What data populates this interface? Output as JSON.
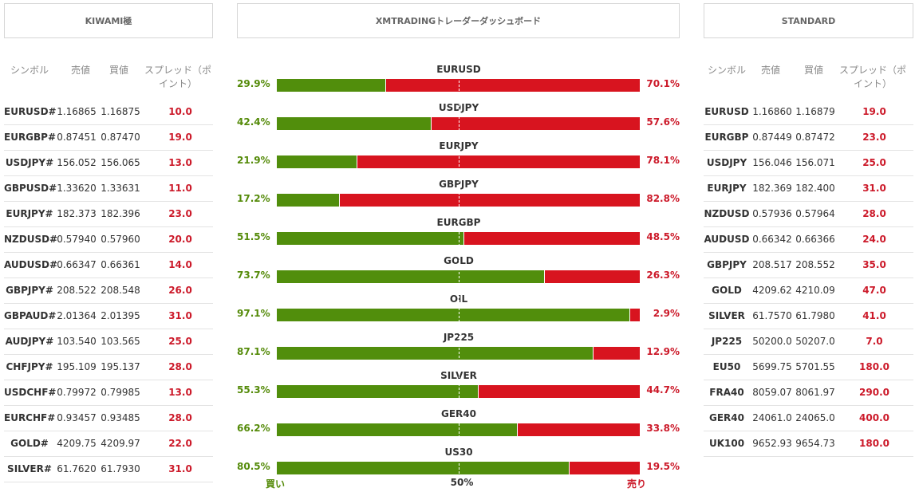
{
  "left_panel": {
    "title": "KIWAMI極",
    "columns": [
      "シンボル",
      "売値",
      "買値",
      "スプレッド（ポイント）"
    ],
    "columns_lines": {
      "spread_line1": "スプレッド（ポ",
      "spread_line2": "イント）"
    },
    "rows": [
      {
        "symbol": "EURUSD#",
        "bid": "1.16865",
        "ask": "1.16875",
        "spread": "10.0"
      },
      {
        "symbol": "EURGBP#",
        "bid": "0.87451",
        "ask": "0.87470",
        "spread": "19.0"
      },
      {
        "symbol": "USDJPY#",
        "bid": "156.052",
        "ask": "156.065",
        "spread": "13.0"
      },
      {
        "symbol": "GBPUSD#",
        "bid": "1.33620",
        "ask": "1.33631",
        "spread": "11.0"
      },
      {
        "symbol": "EURJPY#",
        "bid": "182.373",
        "ask": "182.396",
        "spread": "23.0"
      },
      {
        "symbol": "NZDUSD#",
        "bid": "0.57940",
        "ask": "0.57960",
        "spread": "20.0"
      },
      {
        "symbol": "AUDUSD#",
        "bid": "0.66347",
        "ask": "0.66361",
        "spread": "14.0"
      },
      {
        "symbol": "GBPJPY#",
        "bid": "208.522",
        "ask": "208.548",
        "spread": "26.0"
      },
      {
        "symbol": "GBPAUD#",
        "bid": "2.01364",
        "ask": "2.01395",
        "spread": "31.0"
      },
      {
        "symbol": "AUDJPY#",
        "bid": "103.540",
        "ask": "103.565",
        "spread": "25.0"
      },
      {
        "symbol": "CHFJPY#",
        "bid": "195.109",
        "ask": "195.137",
        "spread": "28.0"
      },
      {
        "symbol": "USDCHF#",
        "bid": "0.79972",
        "ask": "0.79985",
        "spread": "13.0"
      },
      {
        "symbol": "EURCHF#",
        "bid": "0.93457",
        "ask": "0.93485",
        "spread": "28.0"
      },
      {
        "symbol": "GOLD#",
        "bid": "4209.75",
        "ask": "4209.97",
        "spread": "22.0"
      },
      {
        "symbol": "SILVER#",
        "bid": "61.7620",
        "ask": "61.7930",
        "spread": "31.0"
      }
    ]
  },
  "center_panel": {
    "title": "XMTRADINGトレーダーダッシュボード",
    "buy_label": "買い",
    "mid_label": "50%",
    "sell_label": "売り",
    "colors": {
      "buy": "#518e0c",
      "sell": "#d8141f"
    },
    "bars": [
      {
        "symbol": "EURUSD",
        "buy": 29.9,
        "sell": 70.1,
        "buy_text": "29.9%",
        "sell_text": "70.1%"
      },
      {
        "symbol": "USDJPY",
        "buy": 42.4,
        "sell": 57.6,
        "buy_text": "42.4%",
        "sell_text": "57.6%"
      },
      {
        "symbol": "EURJPY",
        "buy": 21.9,
        "sell": 78.1,
        "buy_text": "21.9%",
        "sell_text": "78.1%"
      },
      {
        "symbol": "GBPJPY",
        "buy": 17.2,
        "sell": 82.8,
        "buy_text": "17.2%",
        "sell_text": "82.8%"
      },
      {
        "symbol": "EURGBP",
        "buy": 51.5,
        "sell": 48.5,
        "buy_text": "51.5%",
        "sell_text": "48.5%"
      },
      {
        "symbol": "GOLD",
        "buy": 73.7,
        "sell": 26.3,
        "buy_text": "73.7%",
        "sell_text": "26.3%"
      },
      {
        "symbol": "OIL",
        "buy": 97.1,
        "sell": 2.9,
        "buy_text": "97.1%",
        "sell_text": "2.9%"
      },
      {
        "symbol": "JP225",
        "buy": 87.1,
        "sell": 12.9,
        "buy_text": "87.1%",
        "sell_text": "12.9%"
      },
      {
        "symbol": "SILVER",
        "buy": 55.3,
        "sell": 44.7,
        "buy_text": "55.3%",
        "sell_text": "44.7%"
      },
      {
        "symbol": "GER40",
        "buy": 66.2,
        "sell": 33.8,
        "buy_text": "66.2%",
        "sell_text": "33.8%"
      },
      {
        "symbol": "US30",
        "buy": 80.5,
        "sell": 19.5,
        "buy_text": "80.5%",
        "sell_text": "19.5%"
      }
    ]
  },
  "right_panel": {
    "title": "STANDARD",
    "columns": [
      "シンボル",
      "売値",
      "買値",
      "スプレッド（ポイント）"
    ],
    "columns_lines": {
      "spread_line1": "スプレッド（ポ",
      "spread_line2": "イント）"
    },
    "rows": [
      {
        "symbol": "EURUSD",
        "bid": "1.16860",
        "ask": "1.16879",
        "spread": "19.0"
      },
      {
        "symbol": "EURGBP",
        "bid": "0.87449",
        "ask": "0.87472",
        "spread": "23.0"
      },
      {
        "symbol": "USDJPY",
        "bid": "156.046",
        "ask": "156.071",
        "spread": "25.0"
      },
      {
        "symbol": "EURJPY",
        "bid": "182.369",
        "ask": "182.400",
        "spread": "31.0"
      },
      {
        "symbol": "NZDUSD",
        "bid": "0.57936",
        "ask": "0.57964",
        "spread": "28.0"
      },
      {
        "symbol": "AUDUSD",
        "bid": "0.66342",
        "ask": "0.66366",
        "spread": "24.0"
      },
      {
        "symbol": "GBPJPY",
        "bid": "208.517",
        "ask": "208.552",
        "spread": "35.0"
      },
      {
        "symbol": "GOLD",
        "bid": "4209.62",
        "ask": "4210.09",
        "spread": "47.0"
      },
      {
        "symbol": "SILVER",
        "bid": "61.7570",
        "ask": "61.7980",
        "spread": "41.0"
      },
      {
        "symbol": "JP225",
        "bid": "50200.0",
        "ask": "50207.0",
        "spread": "7.0"
      },
      {
        "symbol": "EU50",
        "bid": "5699.75",
        "ask": "5701.55",
        "spread": "180.0"
      },
      {
        "symbol": "FRA40",
        "bid": "8059.07",
        "ask": "8061.97",
        "spread": "290.0"
      },
      {
        "symbol": "GER40",
        "bid": "24061.0",
        "ask": "24065.0",
        "spread": "400.0"
      },
      {
        "symbol": "UK100",
        "bid": "9652.93",
        "ask": "9654.73",
        "spread": "180.0"
      }
    ]
  }
}
